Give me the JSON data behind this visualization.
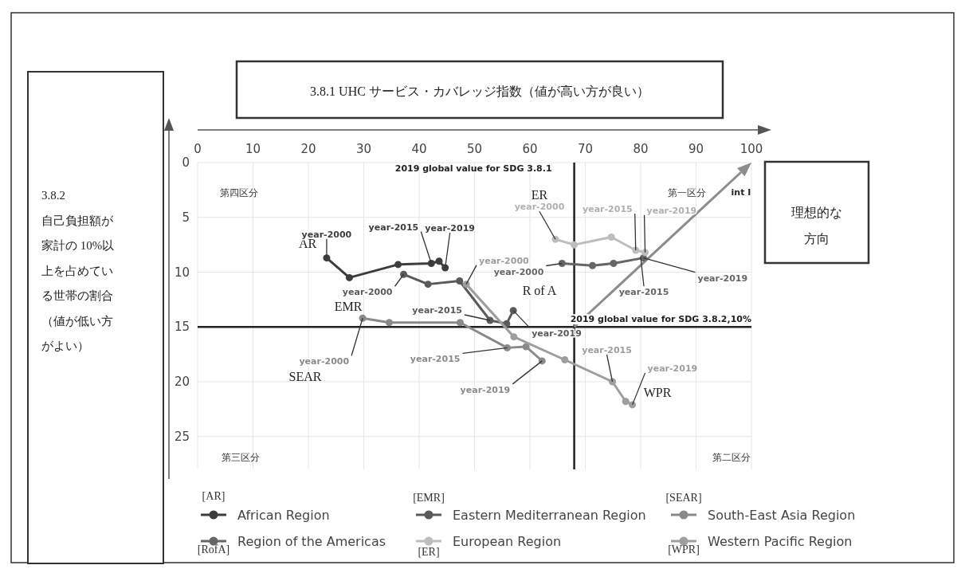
{
  "chart_data": {
    "type": "line",
    "xlabel": "3.8.1 UHC サービス・カバレッジ指数（値が高い方が良い）",
    "xlim": [
      0,
      100
    ],
    "xticks": [
      0,
      10,
      20,
      30,
      40,
      50,
      60,
      70,
      80,
      90,
      100
    ],
    "ylim": [
      28,
      0
    ],
    "yticks": [
      0,
      5,
      10,
      15,
      20,
      25
    ],
    "grid": true,
    "legend": "bottom",
    "marker": "circle",
    "series": [
      {
        "name": "African Region",
        "color": "#3d3d3d",
        "x": [
          23.3,
          27.4,
          36.2,
          42.2,
          43.6,
          44.7
        ],
        "values": [
          8.7,
          10.5,
          9.3,
          9.2,
          9.0,
          9.6
        ]
      },
      {
        "name": "Eastern Mediterranean Region",
        "color": "#5a5a5a",
        "x": [
          37.2,
          41.6,
          47.3,
          52.8,
          55.8,
          57.0
        ],
        "values": [
          10.2,
          11.1,
          10.8,
          14.4,
          14.7,
          13.5
        ]
      },
      {
        "name": "South-East Asia Region",
        "color": "#8a8a8a",
        "x": [
          29.8,
          34.6,
          47.4,
          55.9,
          59.3,
          62.2
        ],
        "values": [
          14.2,
          14.6,
          14.6,
          16.9,
          16.8,
          18.1
        ]
      },
      {
        "name": "Region of the Americas",
        "color": "#666666",
        "x": [
          65.8,
          71.3,
          75.1,
          80.5
        ],
        "values": [
          9.2,
          9.4,
          9.2,
          8.7
        ]
      },
      {
        "name": "European Region",
        "color": "#bdbdbd",
        "x": [
          64.6,
          68.0,
          74.7,
          79.1,
          80.8
        ],
        "values": [
          7.0,
          7.5,
          6.8,
          8.0,
          8.2
        ]
      },
      {
        "name": "Western Pacific Region",
        "color": "#9e9e9e",
        "x": [
          48.5,
          57.1,
          66.3,
          74.9,
          77.3,
          78.5
        ],
        "values": [
          11.1,
          15.9,
          18.0,
          20.0,
          21.8,
          22.1
        ]
      }
    ],
    "ref_lines": [
      {
        "axis": "x",
        "value": 68,
        "label": "2019 global value for SDG 3.8.1",
        "color": "#222222"
      },
      {
        "axis": "y",
        "value": 15,
        "label": "2019 global value for SDG 3.8.2,10%",
        "color": "#222222"
      }
    ],
    "annotations": [
      "3.8.2 自己負担額が家計の 10%以上を占めている世帯の割合（値が低い方がよい）",
      "第四区分",
      "第一区分",
      "第三区分",
      "第二区分",
      "int I",
      "理想的な方向",
      "AR",
      "EMR",
      "SEAR",
      "ER",
      "R of A",
      "WPR",
      "[AR]",
      "[EMR]",
      "[SEAR]",
      "[RofA]",
      "[ER]",
      "[WPR]",
      {
        "text": "year-2000",
        "x": 23.3,
        "y": 8.7
      },
      {
        "text": "year-2015",
        "x": 42.2,
        "y": 9.2
      },
      {
        "text": "year-2019",
        "x": 44.7,
        "y": 9.6
      },
      {
        "text": "year-2000",
        "x": 37.2,
        "y": 10.2
      },
      {
        "text": "year-2015",
        "x": 52.8,
        "y": 14.4
      },
      {
        "text": "year-2019",
        "x": 57.0,
        "y": 13.5
      },
      {
        "text": "year-2000",
        "x": 29.8,
        "y": 14.2
      },
      {
        "text": "year-2015",
        "x": 55.9,
        "y": 16.9
      },
      {
        "text": "year-2019",
        "x": 62.2,
        "y": 18.1
      },
      {
        "text": "year-2000",
        "x": 65.8,
        "y": 9.2
      },
      {
        "text": "year-2015",
        "x": 80.0,
        "y": 8.6
      },
      {
        "text": "year-2019",
        "x": 80.5,
        "y": 8.7
      },
      {
        "text": "year-2000",
        "x": 64.6,
        "y": 7.0
      },
      {
        "text": "year-2015",
        "x": 79.1,
        "y": 8.0
      },
      {
        "text": "year-2019",
        "x": 80.8,
        "y": 8.2
      },
      {
        "text": "year-2000",
        "x": 48.5,
        "y": 11.1
      },
      {
        "text": "year-2015",
        "x": 74.9,
        "y": 20.0
      },
      {
        "text": "year-2019",
        "x": 78.5,
        "y": 22.1
      }
    ]
  }
}
